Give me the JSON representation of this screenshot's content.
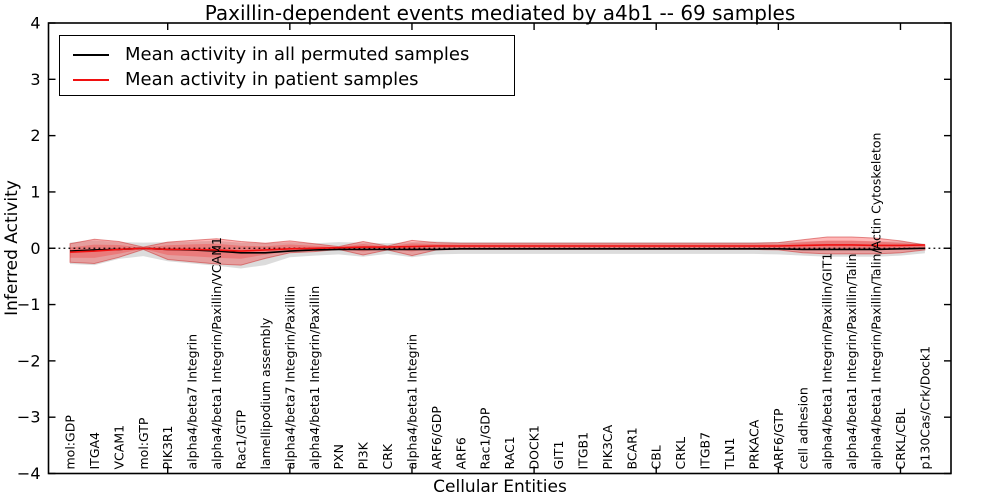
{
  "chart_data": {
    "type": "line",
    "title": "Paxillin-dependent events mediated by a4b1 -- 69 samples",
    "xlabel": "Cellular Entities",
    "ylabel": "Inferred Activity",
    "ylim": [
      -4,
      4
    ],
    "yticks": [
      "4",
      "3",
      "2",
      "1",
      "0",
      "−1",
      "−2",
      "−3",
      "−4"
    ],
    "grid": false,
    "legend_position": "upper-left",
    "zero_line": {
      "style": "dotted",
      "color": "#000000",
      "y": 0
    },
    "x_tick_every": 5,
    "band_core_fraction": 0.55,
    "categories": [
      "mol:GDP",
      "ITGA4",
      "VCAM1",
      "mol:GTP",
      "PIK3R1",
      "alpha4/beta7 Integrin",
      "alpha4/beta1 Integrin/Paxillin/VCAM1",
      "Rac1/GTP",
      "lamellipodium assembly",
      "alpha4/beta7 Integrin/Paxillin",
      "alpha4/beta1 Integrin/Paxillin",
      "PXN",
      "PI3K",
      "CRK",
      "alpha4/beta1 Integrin",
      "ARF6/GDP",
      "ARF6",
      "Rac1/GDP",
      "RAC1",
      "DOCK1",
      "GIT1",
      "ITGB1",
      "PIK3CA",
      "BCAR1",
      "CBL",
      "CRKL",
      "ITGB7",
      "TLN1",
      "PRKACA",
      "ARF6/GTP",
      "cell adhesion",
      "alpha4/beta1 Integrin/Paxillin/GIT1",
      "alpha4/beta1 Integrin/Paxillin/Talin",
      "alpha4/beta1 Integrin/Paxillin/Talin/Actin Cytoskeleton",
      "CRKL/CBL",
      "p130Cas/Crk/Dock1"
    ],
    "series": [
      {
        "name": "Mean activity in all permuted samples",
        "color": "#000000",
        "values": [
          -0.05,
          -0.03,
          -0.02,
          0,
          -0.02,
          -0.03,
          -0.05,
          -0.08,
          -0.08,
          -0.05,
          -0.03,
          -0.02,
          -0.02,
          -0.02,
          -0.02,
          -0.02,
          -0.01,
          -0.01,
          -0.01,
          -0.01,
          -0.01,
          -0.01,
          -0.01,
          -0.01,
          -0.01,
          -0.01,
          -0.01,
          -0.01,
          -0.01,
          -0.01,
          -0.02,
          -0.02,
          -0.02,
          -0.02,
          -0.01,
          0
        ]
      },
      {
        "name": "Mean activity in patient samples",
        "color": "#f01010",
        "values": [
          -0.07,
          -0.05,
          -0.02,
          0,
          -0.02,
          -0.02,
          -0.03,
          -0.05,
          -0.03,
          -0.01,
          0,
          0.01,
          0.02,
          0.02,
          0.03,
          0.04,
          0.04,
          0.04,
          0.04,
          0.04,
          0.04,
          0.04,
          0.04,
          0.04,
          0.04,
          0.04,
          0.04,
          0.04,
          0.04,
          0.04,
          0.05,
          0.06,
          0.06,
          0.05,
          0.05,
          0.06
        ]
      }
    ],
    "bands": [
      {
        "name": "permuted samples range",
        "color": "#8a8a8a",
        "opacity": 0.3,
        "upper": [
          0.1,
          0.14,
          0.11,
          0.1,
          0.11,
          0.12,
          0.13,
          0.1,
          0.09,
          0.11,
          0.09,
          0.11,
          0.1,
          0.09,
          0.11,
          0.12,
          0.11,
          0.11,
          0.11,
          0.11,
          0.11,
          0.11,
          0.11,
          0.11,
          0.11,
          0.11,
          0.11,
          0.11,
          0.11,
          0.11,
          0.12,
          0.13,
          0.13,
          0.12,
          0.12,
          0.08
        ],
        "lower": [
          -0.28,
          -0.3,
          -0.19,
          -0.14,
          -0.23,
          -0.27,
          -0.31,
          -0.36,
          -0.3,
          -0.16,
          -0.13,
          -0.11,
          -0.15,
          -0.1,
          -0.16,
          -0.11,
          -0.1,
          -0.1,
          -0.1,
          -0.1,
          -0.1,
          -0.1,
          -0.1,
          -0.1,
          -0.1,
          -0.1,
          -0.1,
          -0.1,
          -0.1,
          -0.11,
          -0.13,
          -0.15,
          -0.15,
          -0.15,
          -0.13,
          -0.09
        ]
      },
      {
        "name": "patient samples range",
        "color": "#ff0000",
        "opacity": 0.28,
        "stroke": "#cc3333",
        "upper": [
          0.08,
          0.16,
          0.12,
          0.02,
          0.11,
          0.14,
          0.17,
          0.12,
          0.09,
          0.13,
          0.08,
          0.03,
          0.12,
          0.04,
          0.14,
          0.1,
          0.09,
          0.09,
          0.09,
          0.09,
          0.09,
          0.09,
          0.09,
          0.09,
          0.09,
          0.09,
          0.09,
          0.09,
          0.09,
          0.1,
          0.15,
          0.2,
          0.2,
          0.18,
          0.13,
          0.06
        ],
        "lower": [
          -0.25,
          -0.27,
          -0.16,
          -0.02,
          -0.2,
          -0.24,
          -0.28,
          -0.3,
          -0.18,
          -0.08,
          -0.06,
          -0.02,
          -0.12,
          -0.03,
          -0.13,
          -0.03,
          -0.02,
          -0.02,
          -0.02,
          -0.02,
          -0.02,
          -0.02,
          -0.02,
          -0.02,
          -0.02,
          -0.02,
          -0.02,
          -0.02,
          -0.02,
          -0.03,
          -0.08,
          -0.1,
          -0.1,
          -0.1,
          -0.08,
          -0.03
        ]
      }
    ]
  }
}
